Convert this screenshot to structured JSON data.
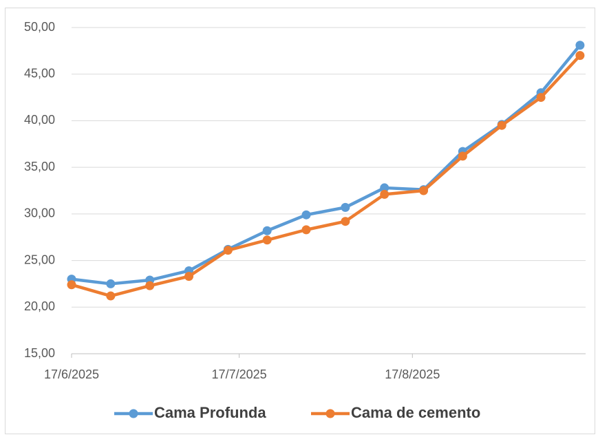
{
  "chart_data": {
    "type": "line",
    "x": [
      "2025-06-17",
      "2025-06-24",
      "2025-07-01",
      "2025-07-08",
      "2025-07-15",
      "2025-07-22",
      "2025-07-29",
      "2025-08-05",
      "2025-08-12",
      "2025-08-19",
      "2025-08-26",
      "2025-09-02",
      "2025-09-09",
      "2025-09-16"
    ],
    "series": [
      {
        "name": "Cama Profunda",
        "color": "#5b9bd5",
        "values": [
          23.0,
          22.5,
          22.9,
          23.9,
          26.2,
          28.2,
          29.9,
          30.7,
          32.8,
          32.6,
          36.7,
          39.6,
          43.0,
          48.1
        ]
      },
      {
        "name": "Cama de cemento",
        "color": "#ed7d31",
        "values": [
          22.4,
          21.2,
          22.3,
          23.3,
          26.1,
          27.2,
          28.3,
          29.2,
          32.1,
          32.5,
          36.2,
          39.5,
          42.5,
          47.0
        ]
      }
    ],
    "xlim": [
      "2025-06-17",
      "2025-09-17"
    ],
    "xticks": [
      {
        "value": "2025-06-17",
        "label": "17/6/2025"
      },
      {
        "value": "2025-07-17",
        "label": "17/7/2025"
      },
      {
        "value": "2025-08-17",
        "label": "17/8/2025"
      }
    ],
    "ylim": [
      15,
      50
    ],
    "yticks": [
      {
        "value": 15,
        "label": "15,00"
      },
      {
        "value": 20,
        "label": "20,00"
      },
      {
        "value": 25,
        "label": "25,00"
      },
      {
        "value": 30,
        "label": "30,00"
      },
      {
        "value": 35,
        "label": "35,00"
      },
      {
        "value": 40,
        "label": "40,00"
      },
      {
        "value": 45,
        "label": "45,00"
      },
      {
        "value": 50,
        "label": "50,00"
      }
    ],
    "grid": true,
    "legend": "bottom"
  }
}
